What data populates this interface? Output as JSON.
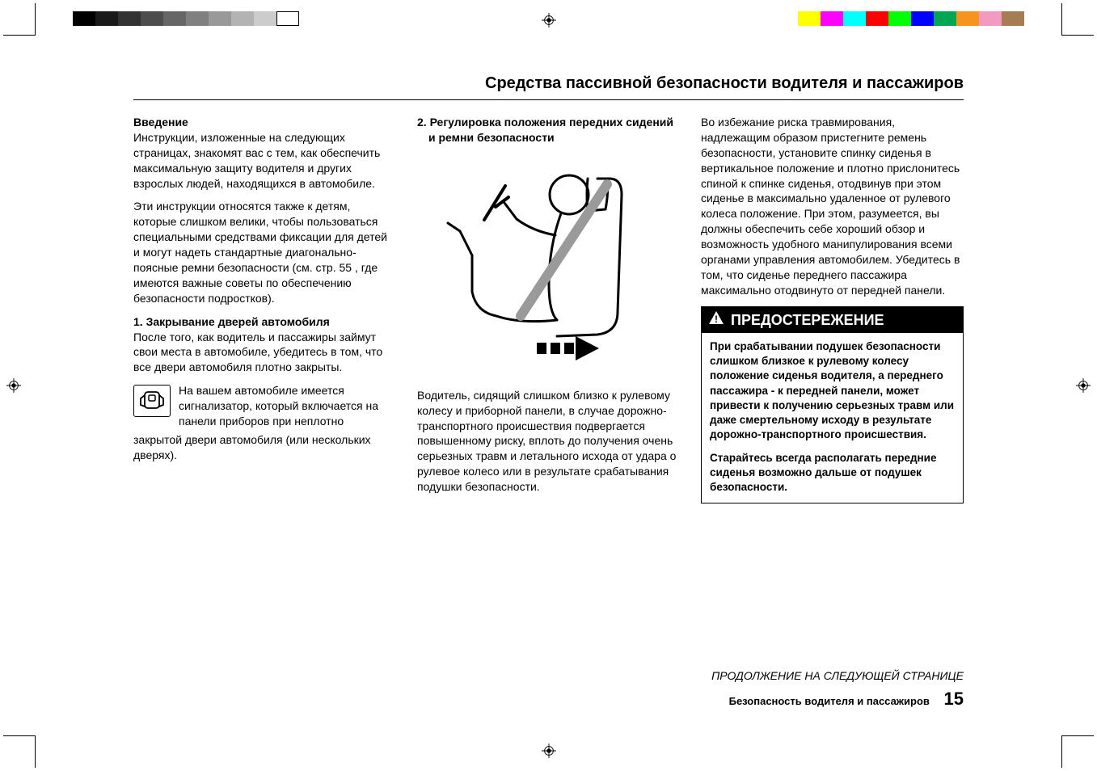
{
  "colorbars": {
    "left_grays": [
      "#000000",
      "#1a1a1a",
      "#333333",
      "#4d4d4d",
      "#666666",
      "#808080",
      "#999999",
      "#b3b3b3",
      "#cccccc",
      "#ffffff"
    ],
    "right_colors": [
      "#ffff00",
      "#ff00ff",
      "#00ffff",
      "#ff0000",
      "#00ff00",
      "#0000ff",
      "#00a651",
      "#f7941d",
      "#f49ac1",
      "#a67c52"
    ]
  },
  "page_title": "Средства пассивной безопасности водителя и пассажиров",
  "col1": {
    "intro_h": "Введение",
    "intro_p1": "Инструкции, изложенные на следующих страницах, знакомят вас с тем, как обеспечить максимальную защиту водителя и других взрослых людей, находящихся в автомобиле.",
    "intro_p2": "Эти инструкции относятся также к детям, которые слишком велики, чтобы пользоваться специальными средствами фиксации для детей и могут надеть стандартные диагонально-поясные ремни безопасности (см. стр. 55 , где имеются важные советы по обеспечению безопасности подростков).",
    "s1_h": "1. Закрывание дверей автомобиля",
    "s1_p1": "После того, как водитель и пассажиры займут свои места в автомобиле, убедитесь в том, что все двери автомобиля плотно закрыты.",
    "s1_icon_lead": "На вашем автомобиле имеется сигнализатор, который включается на панели приборов при неплотно",
    "s1_icon_tail": "закрытой двери автомобиля (или нескольких дверях)."
  },
  "col2": {
    "s2_h": "2. Регулировка положения передних сидений и ремни безопасности",
    "s2_p1": "Водитель, сидящий слишком близко к рулевому колесу и приборной панели, в случае дорожно-транспортного происшествия подвергается повышенному риску, вплоть до получения очень серьезных травм и летального исхода от удара о рулевое колесо или в результате срабатывания подушки безопасности."
  },
  "col3": {
    "p1": "Во избежание риска травмирования, надлежащим образом пристегните ремень безопасности, установите спинку сиденья в вертикальное положение и плотно прислонитесь спиной к спинке сиденья, отодвинув при этом сиденье в максимально удаленное от рулевого колеса положение. При этом, разумеется, вы должны обеспечить себе хороший обзор и возможность удобного манипулирования всеми органами управления автомобилем. Убедитесь в том, что сиденье переднего пассажира максимально отодвинуто от передней панели.",
    "warn_label": "ПРЕДОСТЕРЕЖЕНИЕ",
    "warn_p1": "При срабатывании подушек безопасности слишком близкое к рулевому колесу положение сиденья водителя, а переднего пассажира - к передней панели, может привести к получению серьезных травм или даже смертельному исходу в результате дорожно-транспортного происшествия.",
    "warn_p2": "Старайтесь всегда располагать передние сиденья возможно дальше от подушек безопасности."
  },
  "continuation": "ПРОДОЛЖЕНИЕ НА СЛЕДУЮЩЕЙ СТРАНИЦЕ",
  "footer_label": "Безопасность водителя и пассажиров",
  "page_number": "15"
}
